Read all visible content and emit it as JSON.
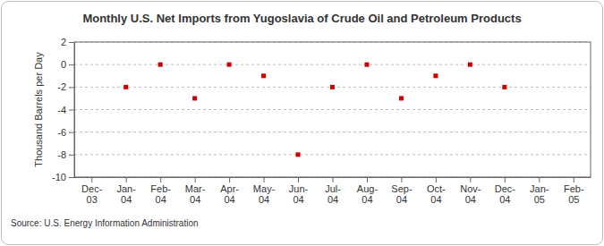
{
  "chart_data": {
    "type": "scatter",
    "title": "Monthly U.S. Net Imports from Yugoslavia of Crude Oil and Petroleum Products",
    "y_label": "Thousand Barrels per Day",
    "source": "Source: U.S. Energy Information Administration",
    "categories": [
      "Dec-03",
      "Jan-04",
      "Feb-04",
      "Mar-04",
      "Apr-04",
      "May-04",
      "Jun-04",
      "Jul-04",
      "Aug-04",
      "Sep-04",
      "Oct-04",
      "Nov-04",
      "Dec-04",
      "Jan-05",
      "Feb-05"
    ],
    "values": [
      null,
      -2,
      0,
      -3,
      0,
      -1,
      -8,
      -2,
      0,
      -3,
      -1,
      0,
      -2,
      null,
      null
    ],
    "color": "#cc0000",
    "marker": "square",
    "ylim": [
      -10,
      2
    ],
    "yticks": [
      -10,
      -8,
      -6,
      -4,
      -2,
      0,
      2
    ],
    "grid": true
  }
}
